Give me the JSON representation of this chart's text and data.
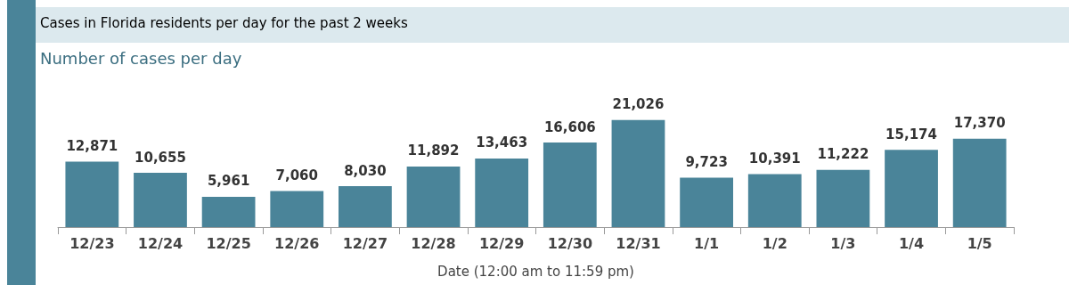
{
  "chart_data": {
    "type": "bar",
    "title": "Cases in Florida residents per day for the past 2 weeks",
    "subtitle": "Number of cases per day",
    "xlabel": "Date (12:00 am to 11:59 pm)",
    "categories": [
      "12/23",
      "12/24",
      "12/25",
      "12/26",
      "12/27",
      "12/28",
      "12/29",
      "12/30",
      "12/31",
      "1/1",
      "1/2",
      "1/3",
      "1/4",
      "1/5"
    ],
    "values": [
      12871,
      10655,
      5961,
      7060,
      8030,
      11892,
      13463,
      16606,
      21026,
      9723,
      10391,
      11222,
      15174,
      17370
    ],
    "value_labels": [
      "12,871",
      "10,655",
      "5,961",
      "7,060",
      "8,030",
      "11,892",
      "13,463",
      "16,606",
      "21,026",
      "9,723",
      "10,391",
      "11,222",
      "15,174",
      "17,370"
    ],
    "color": "#4a8499"
  }
}
